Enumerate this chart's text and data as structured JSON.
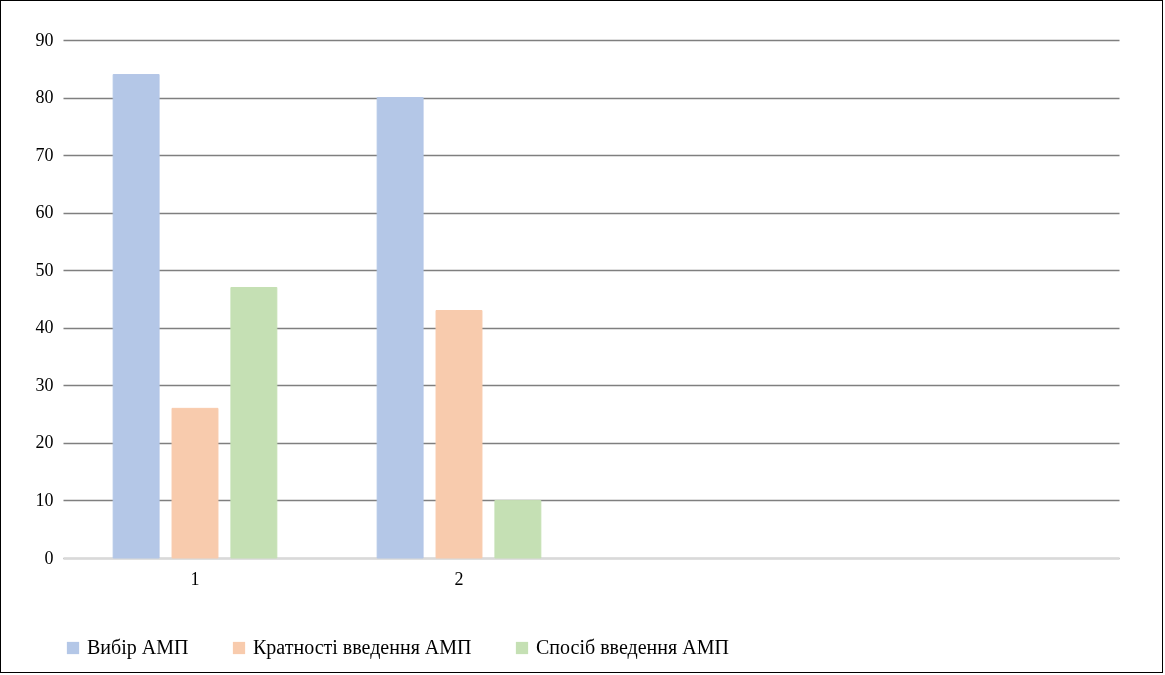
{
  "chart_data": {
    "type": "bar",
    "categories": [
      "1",
      "2",
      null,
      null
    ],
    "series": [
      {
        "name": "Вибір АМП",
        "color": "#b4c7e7",
        "values": [
          84,
          80,
          null,
          null
        ]
      },
      {
        "name": "Кратності введення АМП",
        "color": "#f8cbad",
        "values": [
          26,
          43,
          null,
          null
        ]
      },
      {
        "name": "Спосіб введення АМП",
        "color": "#c5e0b4",
        "values": [
          47,
          10,
          null,
          null
        ]
      }
    ],
    "ylim": [
      0,
      90
    ],
    "yticks": [
      0,
      10,
      20,
      30,
      40,
      50,
      60,
      70,
      80,
      90
    ],
    "grid": "y",
    "legend": "bottom"
  }
}
